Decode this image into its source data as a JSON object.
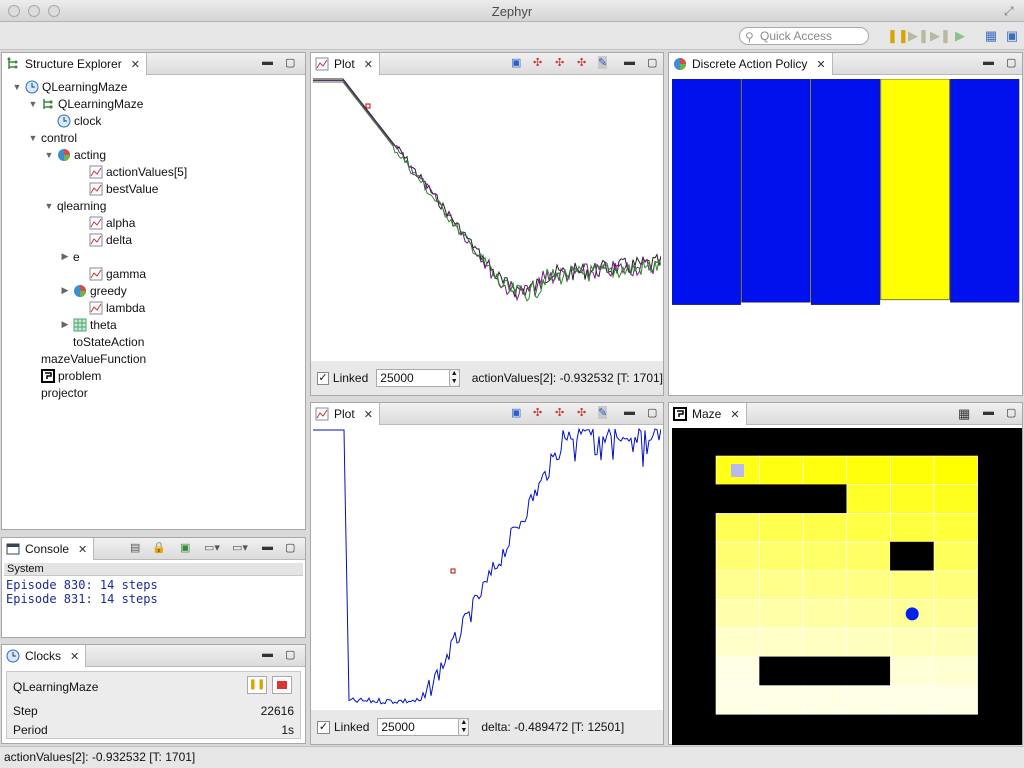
{
  "window": {
    "title": "Zephyr"
  },
  "toolbar": {
    "quick_access_placeholder": "Quick Access",
    "icons": [
      "pause-icon",
      "step-icon",
      "step-end-icon",
      "run-icon",
      "open-perspective-icon",
      "workspace-icon"
    ]
  },
  "structure_explorer": {
    "tab_label": "Structure Explorer",
    "items": [
      {
        "label": "QLearningMaze",
        "expanded": true,
        "icon": "clock-icon"
      },
      {
        "label": "QLearningMaze",
        "expanded": true,
        "icon": "structure-icon"
      },
      {
        "label": "clock",
        "icon": "clock-icon"
      },
      {
        "label": "control",
        "expanded": true
      },
      {
        "label": "acting",
        "expanded": true,
        "icon": "pie-icon"
      },
      {
        "label": "actionValues[5]",
        "icon": "plot-icon"
      },
      {
        "label": "bestValue",
        "icon": "plot-icon"
      },
      {
        "label": "qlearning",
        "expanded": true
      },
      {
        "label": "alpha",
        "icon": "plot-icon"
      },
      {
        "label": "delta",
        "icon": "plot-icon"
      },
      {
        "label": "e",
        "expanded": false
      },
      {
        "label": "gamma",
        "icon": "plot-icon"
      },
      {
        "label": "greedy",
        "expanded": false,
        "icon": "pie-icon"
      },
      {
        "label": "lambda",
        "icon": "plot-icon"
      },
      {
        "label": "theta",
        "expanded": false,
        "icon": "grid-icon"
      },
      {
        "label": "toStateAction"
      },
      {
        "label": "mazeValueFunction"
      },
      {
        "label": "problem",
        "icon": "maze-icon"
      },
      {
        "label": "projector"
      }
    ]
  },
  "console": {
    "tab_label": "Console",
    "header": "System",
    "lines": [
      "Episode 830: 14 steps",
      "Episode 831: 14 steps"
    ]
  },
  "clocks": {
    "tab_label": "Clocks",
    "clock_name": "QLearningMaze",
    "step_label": "Step",
    "step_value": "22616",
    "period_label": "Period",
    "period_value": "1s"
  },
  "plot1": {
    "tab_label": "Plot",
    "linked_label": "Linked",
    "linked": true,
    "length_value": "25000",
    "readout": "actionValues[2]: -0.932532 [T: 1701]"
  },
  "plot2": {
    "tab_label": "Plot",
    "linked_label": "Linked",
    "linked": true,
    "length_value": "25000",
    "readout": "delta: -0.489472 [T: 12501]"
  },
  "policy": {
    "tab_label": "Discrete Action Policy",
    "bars": [
      {
        "value": 0.94,
        "color": "#0011ee"
      },
      {
        "value": 0.93,
        "color": "#0011ee"
      },
      {
        "value": 0.94,
        "color": "#0011ee"
      },
      {
        "value": 0.92,
        "color": "#ffff00"
      },
      {
        "value": 0.93,
        "color": "#0011ee"
      }
    ]
  },
  "maze": {
    "tab_label": "Maze",
    "colors": {
      "wall": "#000000",
      "agent": "#0022ee",
      "goal": "#b8b8f0"
    }
  },
  "statusbar": {
    "text": "actionValues[2]: -0.932532 [T: 1701]"
  }
}
